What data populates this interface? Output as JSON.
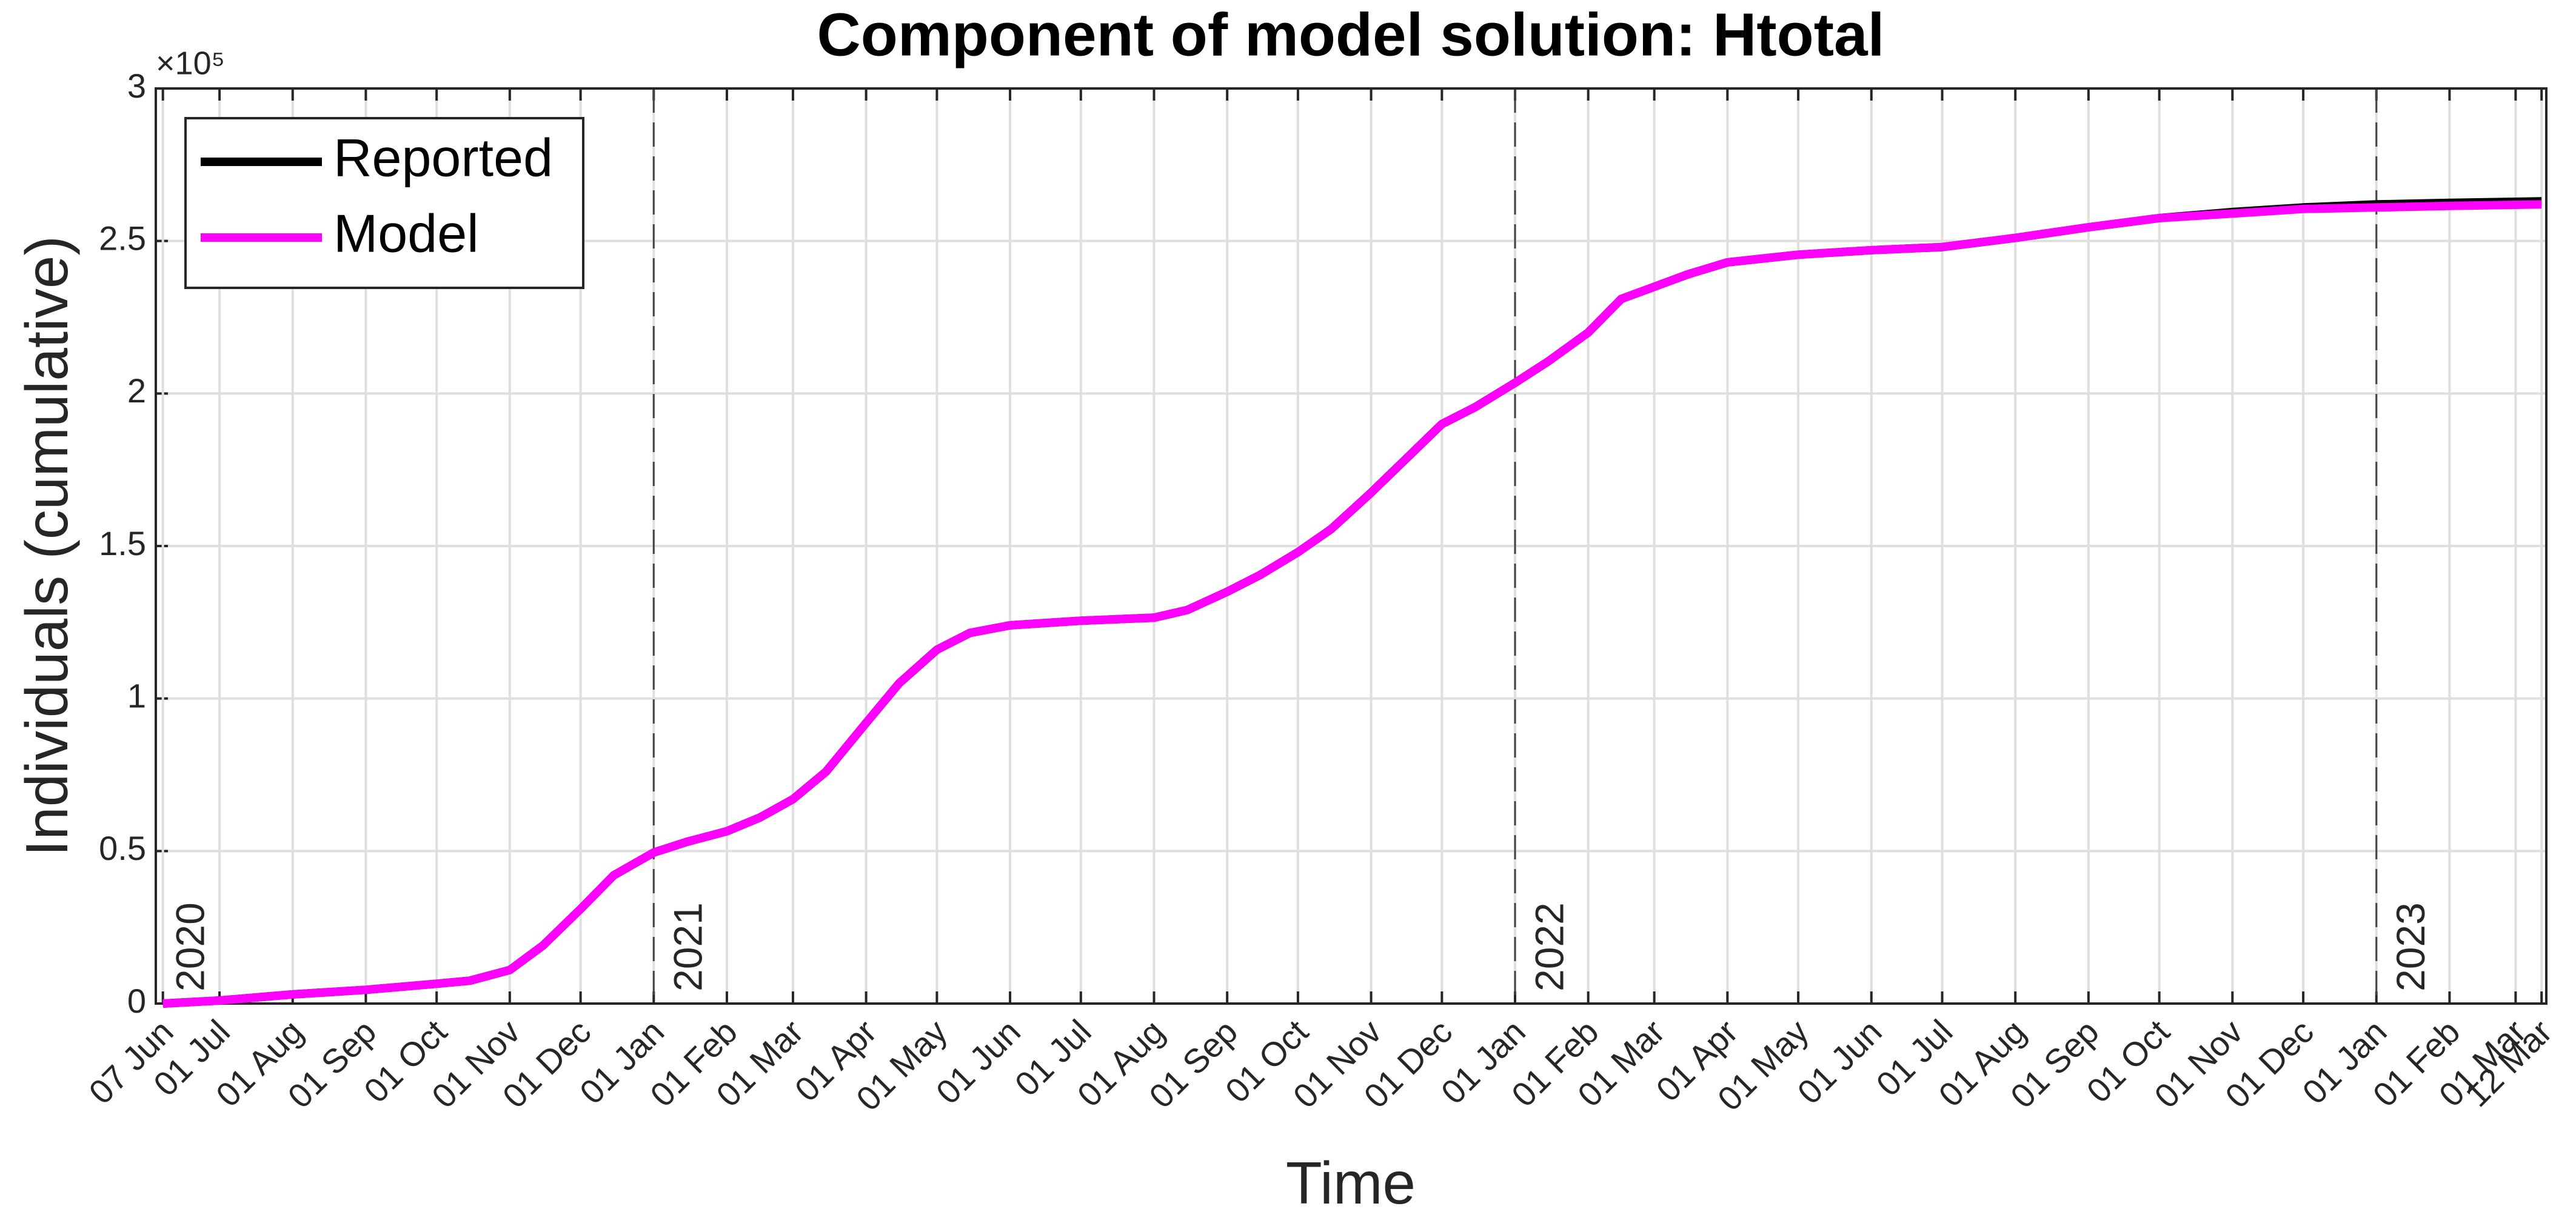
{
  "chart_data": {
    "type": "line",
    "title": "Component of model solution: Htotal",
    "xlabel": "Time",
    "ylabel": "Individuals (cumulative)",
    "y_exponent": "×10⁵",
    "x": [
      "2020-06-07",
      "2020-07-01",
      "2020-08-01",
      "2020-09-01",
      "2020-10-01",
      "2020-10-15",
      "2020-11-01",
      "2020-11-15",
      "2020-12-01",
      "2020-12-15",
      "2021-01-01",
      "2021-01-15",
      "2021-02-01",
      "2021-02-15",
      "2021-03-01",
      "2021-03-15",
      "2021-04-01",
      "2021-04-15",
      "2021-05-01",
      "2021-05-15",
      "2021-06-01",
      "2021-07-01",
      "2021-08-01",
      "2021-08-15",
      "2021-09-01",
      "2021-09-15",
      "2021-10-01",
      "2021-10-15",
      "2021-11-01",
      "2021-11-15",
      "2021-12-01",
      "2021-12-15",
      "2022-01-01",
      "2022-01-15",
      "2022-02-01",
      "2022-02-15",
      "2022-03-01",
      "2022-03-15",
      "2022-04-01",
      "2022-05-01",
      "2022-06-01",
      "2022-07-01",
      "2022-08-01",
      "2022-09-01",
      "2022-10-01",
      "2022-11-01",
      "2022-12-01",
      "2023-01-01",
      "2023-02-01",
      "2023-03-12"
    ],
    "series": [
      {
        "name": "Reported",
        "color": "#000000",
        "values": [
          0,
          1000,
          3000,
          4500,
          6500,
          7500,
          11000,
          19000,
          31000,
          42000,
          49500,
          53000,
          56500,
          61000,
          67000,
          76000,
          92000,
          105000,
          116000,
          121500,
          124000,
          125500,
          126500,
          129000,
          135000,
          140500,
          148000,
          155500,
          167500,
          178000,
          190000,
          195500,
          203500,
          210500,
          220000,
          231000,
          235000,
          239000,
          243000,
          245500,
          247000,
          248000,
          251000,
          254500,
          257500,
          259500,
          261000,
          262000,
          262500,
          263000
        ]
      },
      {
        "name": "Model",
        "color": "#ff00ff",
        "values": [
          0,
          1000,
          3000,
          4500,
          6500,
          7500,
          11000,
          19000,
          31000,
          42000,
          49500,
          53000,
          56500,
          61000,
          67000,
          76000,
          92000,
          105000,
          116000,
          121500,
          124000,
          125500,
          126500,
          129000,
          135000,
          140500,
          148000,
          155500,
          167500,
          178000,
          190000,
          195500,
          203500,
          210500,
          220000,
          231000,
          235000,
          239000,
          243000,
          245500,
          247000,
          248000,
          251000,
          254500,
          257500,
          259000,
          260500,
          261000,
          261500,
          262000
        ]
      }
    ],
    "xlim": [
      "2020-06-04",
      "2023-03-14"
    ],
    "xticks": [
      {
        "value": "2020-06-07",
        "label": "07 Jun"
      },
      {
        "value": "2020-07-01",
        "label": "01 Jul"
      },
      {
        "value": "2020-08-01",
        "label": "01 Aug"
      },
      {
        "value": "2020-09-01",
        "label": "01 Sep"
      },
      {
        "value": "2020-10-01",
        "label": "01 Oct"
      },
      {
        "value": "2020-11-01",
        "label": "01 Nov"
      },
      {
        "value": "2020-12-01",
        "label": "01 Dec"
      },
      {
        "value": "2021-01-01",
        "label": "01 Jan"
      },
      {
        "value": "2021-02-01",
        "label": "01 Feb"
      },
      {
        "value": "2021-03-01",
        "label": "01 Mar"
      },
      {
        "value": "2021-04-01",
        "label": "01 Apr"
      },
      {
        "value": "2021-05-01",
        "label": "01 May"
      },
      {
        "value": "2021-06-01",
        "label": "01 Jun"
      },
      {
        "value": "2021-07-01",
        "label": "01 Jul"
      },
      {
        "value": "2021-08-01",
        "label": "01 Aug"
      },
      {
        "value": "2021-09-01",
        "label": "01 Sep"
      },
      {
        "value": "2021-10-01",
        "label": "01 Oct"
      },
      {
        "value": "2021-11-01",
        "label": "01 Nov"
      },
      {
        "value": "2021-12-01",
        "label": "01 Dec"
      },
      {
        "value": "2022-01-01",
        "label": "01 Jan"
      },
      {
        "value": "2022-02-01",
        "label": "01 Feb"
      },
      {
        "value": "2022-03-01",
        "label": "01 Mar"
      },
      {
        "value": "2022-04-01",
        "label": "01 Apr"
      },
      {
        "value": "2022-05-01",
        "label": "01 May"
      },
      {
        "value": "2022-06-01",
        "label": "01 Jun"
      },
      {
        "value": "2022-07-01",
        "label": "01 Jul"
      },
      {
        "value": "2022-08-01",
        "label": "01 Aug"
      },
      {
        "value": "2022-09-01",
        "label": "01 Sep"
      },
      {
        "value": "2022-10-01",
        "label": "01 Oct"
      },
      {
        "value": "2022-11-01",
        "label": "01 Nov"
      },
      {
        "value": "2022-12-01",
        "label": "01 Dec"
      },
      {
        "value": "2023-01-01",
        "label": "01 Jan"
      },
      {
        "value": "2023-02-01",
        "label": "01 Feb"
      },
      {
        "value": "2023-03-01",
        "label": "01 Mar"
      },
      {
        "value": "2023-03-12",
        "label": "12 Mar"
      }
    ],
    "ylim": [
      0,
      300000
    ],
    "yticks": [
      0,
      {
        "value": 50000,
        "label": "0.5"
      },
      {
        "value": 100000,
        "label": "1"
      },
      {
        "value": 150000,
        "label": "1.5"
      },
      {
        "value": 200000,
        "label": "2"
      },
      {
        "value": 250000,
        "label": "2.5"
      },
      {
        "value": 300000,
        "label": "3"
      }
    ],
    "year_markers": [
      {
        "x": "2020-06-04",
        "label": "2020"
      },
      {
        "x": "2021-01-01",
        "label": "2021"
      },
      {
        "x": "2022-01-01",
        "label": "2022"
      },
      {
        "x": "2023-01-01",
        "label": "2023"
      }
    ],
    "grid": true,
    "legend": "upper left"
  }
}
